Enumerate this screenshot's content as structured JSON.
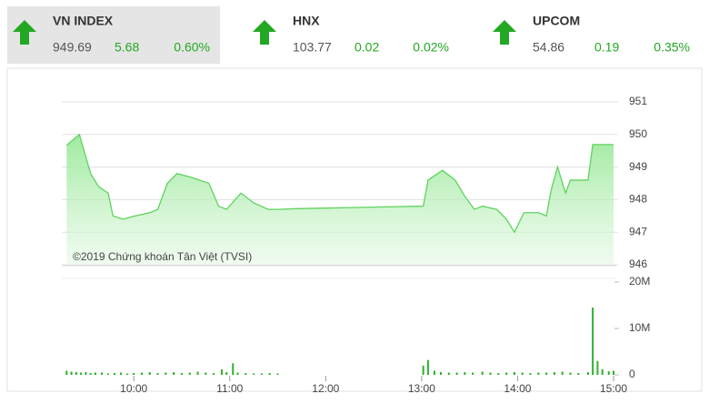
{
  "indices": [
    {
      "name": "VN INDEX",
      "value": 949.69,
      "change": 5.68,
      "pct": "0.60%"
    },
    {
      "name": "HNX",
      "value": 103.77,
      "change": 0.02,
      "pct": "0.02%"
    },
    {
      "name": "UPCOM",
      "value": 54.86,
      "change": 0.19,
      "pct": "0.35%"
    }
  ],
  "chart_data": [
    {
      "type": "area",
      "annotation": "©2019 Chứng khoán Tân Việt (TVSI)",
      "color": "#5fd35f",
      "x": [
        558,
        566,
        573,
        578,
        584,
        587,
        593,
        601,
        610,
        615,
        621,
        627,
        635,
        641,
        647,
        653,
        658,
        667,
        675,
        684,
        690,
        700,
        720,
        760,
        781,
        784,
        793,
        801,
        807,
        813,
        818,
        827,
        833,
        838,
        844,
        853,
        858,
        861,
        865,
        870,
        873,
        884,
        887,
        900
      ],
      "values": [
        949.67,
        950.0,
        948.8,
        948.4,
        948.2,
        947.5,
        947.4,
        947.5,
        947.6,
        947.7,
        948.5,
        948.8,
        948.7,
        948.6,
        948.5,
        947.8,
        947.7,
        948.2,
        947.9,
        947.7,
        947.7,
        947.72,
        947.74,
        947.78,
        947.8,
        948.6,
        948.9,
        948.6,
        948.1,
        947.7,
        947.8,
        947.7,
        947.4,
        947.0,
        947.6,
        947.6,
        947.5,
        948.3,
        949.0,
        948.2,
        948.6,
        948.6,
        949.69,
        949.69
      ],
      "xlim": [
        555,
        900
      ],
      "ylim": [
        946,
        951
      ],
      "yticks": [
        946,
        947,
        948,
        949,
        950,
        951
      ],
      "grid": true
    },
    {
      "type": "bar",
      "color": "#2db12d",
      "x": [
        558,
        561,
        564,
        567,
        570,
        573,
        576,
        580,
        584,
        588,
        592,
        596,
        600,
        605,
        610,
        615,
        620,
        625,
        630,
        635,
        640,
        645,
        650,
        655,
        658,
        662,
        665,
        670,
        675,
        680,
        685,
        690,
        781,
        784,
        788,
        792,
        797,
        802,
        807,
        812,
        818,
        823,
        828,
        833,
        838,
        843,
        848,
        853,
        858,
        863,
        868,
        873,
        878,
        884,
        887,
        890,
        893,
        897,
        900
      ],
      "values": [
        900000,
        700000,
        600000,
        500000,
        600000,
        400000,
        500000,
        500000,
        300000,
        400000,
        500000,
        300000,
        400000,
        500000,
        600000,
        400000,
        500000,
        600000,
        400000,
        500000,
        700000,
        500000,
        400000,
        1200000,
        600000,
        2500000,
        500000,
        400000,
        300000,
        300000,
        400000,
        300000,
        2000000,
        3200000,
        900000,
        600000,
        500000,
        500000,
        600000,
        500000,
        700000,
        500000,
        400000,
        500000,
        600000,
        500000,
        400000,
        500000,
        500000,
        600000,
        700000,
        500000,
        400000,
        600000,
        14500000,
        3000000,
        1200000,
        800000,
        900000
      ],
      "xlim": [
        555,
        900
      ],
      "ylim": [
        0,
        20000000
      ],
      "yticks": [
        0,
        {
          "value": 10000000,
          "label": "10M"
        },
        {
          "value": 20000000,
          "label": "20M"
        }
      ],
      "xticks": [
        {
          "value": 600,
          "label": "10:00"
        },
        {
          "value": 660,
          "label": "11:00"
        },
        {
          "value": 720,
          "label": "12:00"
        },
        {
          "value": 780,
          "label": "13:00"
        },
        {
          "value": 840,
          "label": "14:00"
        },
        {
          "value": 900,
          "label": "15:00"
        }
      ]
    }
  ]
}
